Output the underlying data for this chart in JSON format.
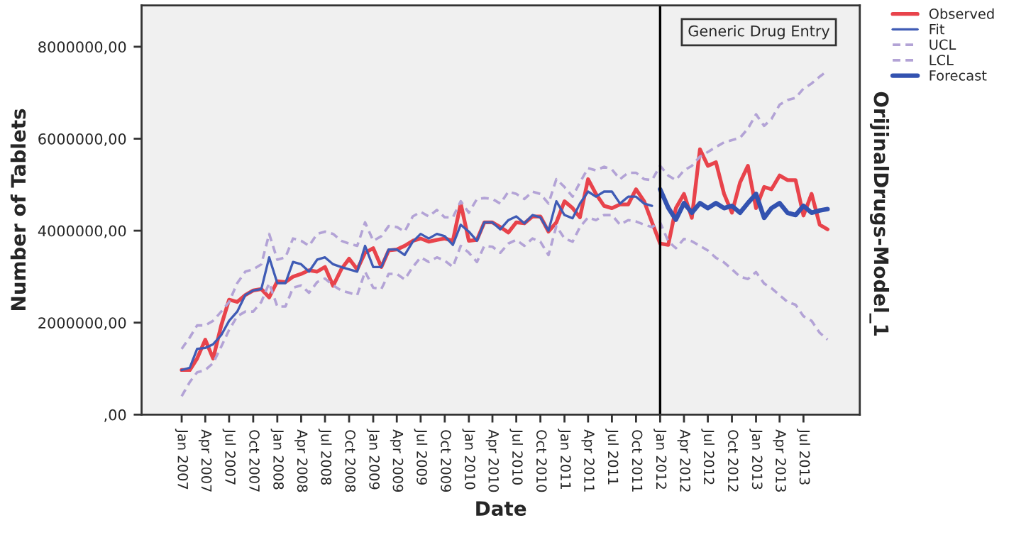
{
  "chart_data": {
    "type": "line",
    "xlabel": "Date",
    "ylabel": "Number of Tablets",
    "annotations": [
      "OrijinalDrugs-Model_1"
    ],
    "x": [
      "2007-01",
      "2007-02",
      "2007-03",
      "2007-04",
      "2007-05",
      "2007-06",
      "2007-07",
      "2007-08",
      "2007-09",
      "2007-10",
      "2007-11",
      "2007-12",
      "2008-01",
      "2008-02",
      "2008-03",
      "2008-04",
      "2008-05",
      "2008-06",
      "2008-07",
      "2008-08",
      "2008-09",
      "2008-10",
      "2008-11",
      "2008-12",
      "2009-01",
      "2009-02",
      "2009-03",
      "2009-04",
      "2009-05",
      "2009-06",
      "2009-07",
      "2009-08",
      "2009-09",
      "2009-10",
      "2009-11",
      "2009-12",
      "2010-01",
      "2010-02",
      "2010-03",
      "2010-04",
      "2010-05",
      "2010-06",
      "2010-07",
      "2010-08",
      "2010-09",
      "2010-10",
      "2010-11",
      "2010-12",
      "2011-01",
      "2011-02",
      "2011-03",
      "2011-04",
      "2011-05",
      "2011-06",
      "2011-07",
      "2011-08",
      "2011-09",
      "2011-10",
      "2011-11",
      "2011-12",
      "2012-01",
      "2012-02",
      "2012-03",
      "2012-04",
      "2012-05",
      "2012-06",
      "2012-07",
      "2012-08",
      "2012-09",
      "2012-10",
      "2012-11",
      "2012-12",
      "2013-01",
      "2013-02",
      "2013-03",
      "2013-04",
      "2013-05",
      "2013-06",
      "2013-07",
      "2013-08",
      "2013-09",
      "2013-10"
    ],
    "series": [
      {
        "name": "Observed",
        "color": "#e8434b",
        "line_style": "solid",
        "values": [
          970000,
          970000,
          1220000,
          1630000,
          1220000,
          1940000,
          2500000,
          2450000,
          2600000,
          2700000,
          2730000,
          2550000,
          2900000,
          2880000,
          3000000,
          3060000,
          3140000,
          3110000,
          3210000,
          2800000,
          3160000,
          3390000,
          3160000,
          3520000,
          3620000,
          3210000,
          3570000,
          3590000,
          3670000,
          3780000,
          3830000,
          3760000,
          3800000,
          3830000,
          3780000,
          4590000,
          3780000,
          3800000,
          4180000,
          4180000,
          4080000,
          3960000,
          4180000,
          4160000,
          4310000,
          4310000,
          3980000,
          4180000,
          4640000,
          4490000,
          4290000,
          5120000,
          4800000,
          4540000,
          4490000,
          4570000,
          4570000,
          4900000,
          4640000,
          4180000,
          3720000,
          3690000,
          4490000,
          4800000,
          4280000,
          5770000,
          5410000,
          5490000,
          4800000,
          4390000,
          5050000,
          5410000,
          4490000,
          4950000,
          4900000,
          5200000,
          5100000,
          5100000,
          4330000,
          4800000,
          4130000,
          4030000
        ]
      },
      {
        "name": "Fit",
        "color": "#3f5bb5",
        "line_style": "solid",
        "values": [
          970000,
          1020000,
          1430000,
          1450000,
          1530000,
          1730000,
          2040000,
          2240000,
          2600000,
          2700000,
          2730000,
          3420000,
          2860000,
          2860000,
          3320000,
          3270000,
          3110000,
          3370000,
          3420000,
          3270000,
          3210000,
          3160000,
          3110000,
          3670000,
          3210000,
          3210000,
          3590000,
          3590000,
          3470000,
          3760000,
          3930000,
          3830000,
          3930000,
          3880000,
          3690000,
          4130000,
          3980000,
          3780000,
          4180000,
          4180000,
          4030000,
          4230000,
          4310000,
          4160000,
          4340000,
          4290000,
          4000000,
          4640000,
          4340000,
          4270000,
          4590000,
          4850000,
          4740000,
          4850000,
          4850000,
          4590000,
          4740000,
          4740000,
          4590000,
          4540000,
          null,
          null,
          null,
          null,
          null,
          null,
          null,
          null,
          null,
          null,
          null,
          null,
          null,
          null,
          null,
          null,
          null,
          null,
          null,
          null,
          null,
          null
        ]
      },
      {
        "name": "UCL",
        "color": "#b3a3d6",
        "line_style": "dashed",
        "values": [
          1430000,
          1680000,
          1940000,
          1940000,
          2040000,
          2240000,
          2450000,
          2860000,
          3110000,
          3160000,
          3270000,
          3930000,
          3370000,
          3420000,
          3830000,
          3780000,
          3670000,
          3930000,
          3980000,
          3930000,
          3780000,
          3720000,
          3670000,
          4180000,
          3780000,
          3880000,
          4100000,
          4080000,
          3980000,
          4310000,
          4410000,
          4310000,
          4450000,
          4290000,
          4290000,
          4640000,
          4390000,
          4690000,
          4710000,
          4690000,
          4590000,
          4850000,
          4800000,
          4690000,
          4850000,
          4800000,
          4590000,
          5120000,
          4950000,
          4740000,
          5050000,
          5360000,
          5310000,
          5390000,
          5330000,
          5120000,
          5260000,
          5260000,
          5120000,
          5100000,
          5410000,
          5200000,
          5100000,
          5310000,
          5410000,
          5610000,
          5710000,
          5820000,
          5920000,
          5970000,
          6020000,
          6220000,
          6530000,
          6280000,
          6430000,
          6740000,
          6840000,
          6890000,
          7090000,
          7200000,
          7350000,
          7480000
        ]
      },
      {
        "name": "LCL",
        "color": "#b3a3d6",
        "line_style": "dashed",
        "values": [
          400000,
          710000,
          920000,
          970000,
          1120000,
          1480000,
          1840000,
          2140000,
          2240000,
          2240000,
          2450000,
          2860000,
          2350000,
          2350000,
          2760000,
          2810000,
          2650000,
          2880000,
          2960000,
          2810000,
          2700000,
          2650000,
          2600000,
          3110000,
          2760000,
          2730000,
          3060000,
          3060000,
          2940000,
          3210000,
          3420000,
          3320000,
          3420000,
          3350000,
          3210000,
          3670000,
          3520000,
          3320000,
          3670000,
          3650000,
          3520000,
          3720000,
          3800000,
          3670000,
          3830000,
          3760000,
          3470000,
          4100000,
          3830000,
          3760000,
          4080000,
          4290000,
          4230000,
          4340000,
          4340000,
          4130000,
          4230000,
          4200000,
          4130000,
          4080000,
          4180000,
          3770000,
          3620000,
          3820000,
          3770000,
          3670000,
          3570000,
          3410000,
          3310000,
          3160000,
          3000000,
          2950000,
          3100000,
          2850000,
          2750000,
          2600000,
          2450000,
          2390000,
          2140000,
          2040000,
          1780000,
          1630000
        ]
      },
      {
        "name": "Forecast",
        "color": "#3352b0",
        "line_style": "solid",
        "values": [
          null,
          null,
          null,
          null,
          null,
          null,
          null,
          null,
          null,
          null,
          null,
          null,
          null,
          null,
          null,
          null,
          null,
          null,
          null,
          null,
          null,
          null,
          null,
          null,
          null,
          null,
          null,
          null,
          null,
          null,
          null,
          null,
          null,
          null,
          null,
          null,
          null,
          null,
          null,
          null,
          null,
          null,
          null,
          null,
          null,
          null,
          null,
          null,
          null,
          null,
          null,
          null,
          null,
          null,
          null,
          null,
          null,
          null,
          null,
          null,
          4900000,
          4500000,
          4240000,
          4600000,
          4390000,
          4600000,
          4490000,
          4600000,
          4490000,
          4540000,
          4390000,
          4600000,
          4800000,
          4280000,
          4490000,
          4600000,
          4390000,
          4340000,
          4540000,
          4390000,
          4440000,
          4470000
        ]
      }
    ],
    "ref_lines": [
      {
        "axis": "x",
        "value": "2012-01",
        "label": "Generic Drug Entry",
        "color": "#000000"
      }
    ],
    "xlim": [
      "2006-08",
      "2014-02"
    ],
    "xticks": [
      {
        "value": "2007-01",
        "label": "Jan 2007"
      },
      {
        "value": "2007-04",
        "label": "Apr 2007"
      },
      {
        "value": "2007-07",
        "label": "Jul 2007"
      },
      {
        "value": "2007-10",
        "label": "Oct 2007"
      },
      {
        "value": "2008-01",
        "label": "Jan 2008"
      },
      {
        "value": "2008-04",
        "label": "Apr 2008"
      },
      {
        "value": "2008-07",
        "label": "Jul 2008"
      },
      {
        "value": "2008-10",
        "label": "Oct 2008"
      },
      {
        "value": "2009-01",
        "label": "Jan 2009"
      },
      {
        "value": "2009-04",
        "label": "Apr 2009"
      },
      {
        "value": "2009-07",
        "label": "Jul 2009"
      },
      {
        "value": "2009-10",
        "label": "Oct 2009"
      },
      {
        "value": "2010-01",
        "label": "Jan 2010"
      },
      {
        "value": "2010-04",
        "label": "Apr 2010"
      },
      {
        "value": "2010-07",
        "label": "Jul 2010"
      },
      {
        "value": "2010-10",
        "label": "Oct 2010"
      },
      {
        "value": "2011-01",
        "label": "Jan 2011"
      },
      {
        "value": "2011-04",
        "label": "Apr 2011"
      },
      {
        "value": "2011-07",
        "label": "Jul 2011"
      },
      {
        "value": "2011-10",
        "label": "Oct 2011"
      },
      {
        "value": "2012-01",
        "label": "Jan 2012"
      },
      {
        "value": "2012-04",
        "label": "Apr 2012"
      },
      {
        "value": "2012-07",
        "label": "Jul 2012"
      },
      {
        "value": "2012-10",
        "label": "Oct 2012"
      },
      {
        "value": "2013-01",
        "label": "Jan 2013"
      },
      {
        "value": "2013-04",
        "label": "Apr 2013"
      },
      {
        "value": "2013-07",
        "label": "Jul 2013"
      }
    ],
    "ylim": [
      0,
      8900000
    ],
    "yticks": [
      {
        "value": 0,
        "label": ",00"
      },
      {
        "value": 2000000,
        "label": "2000000,00"
      },
      {
        "value": 4000000,
        "label": "4000000,00"
      },
      {
        "value": 6000000,
        "label": "6000000,00"
      },
      {
        "value": 8000000,
        "label": "8000000,00"
      }
    ],
    "grid": false,
    "legend": "right",
    "marker": "none"
  }
}
